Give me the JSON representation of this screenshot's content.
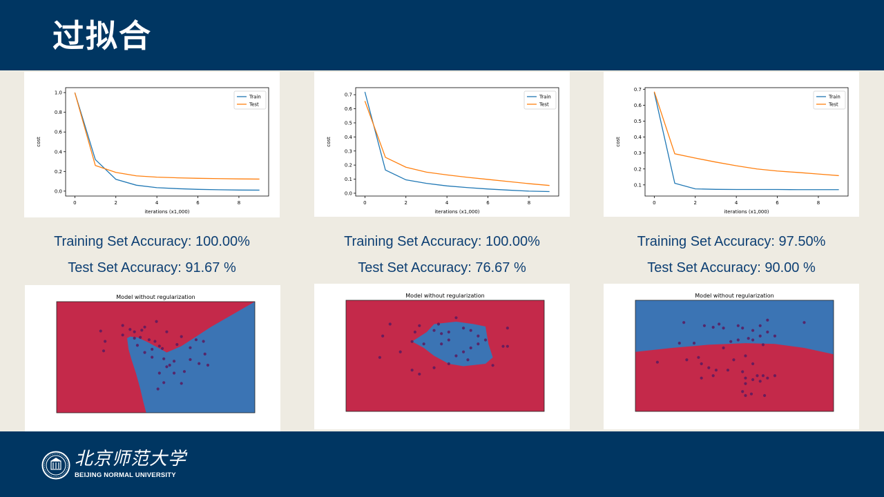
{
  "slide": {
    "title": "过拟合"
  },
  "footer": {
    "university_cn": "北京师范大学",
    "university_en": "BEIJING NORMAL UNIVERSITY"
  },
  "colors": {
    "header_bg": "#003662",
    "train": "#1f77b4",
    "test": "#ff7f0e",
    "red_region": "#c4294a",
    "blue_region": "#3b74b4",
    "text": "#0d3f73"
  },
  "chart_data": [
    {
      "type": "line",
      "xlabel": "iterations (x1,000)",
      "ylabel": "cost",
      "xlim": [
        -0.45,
        9.45
      ],
      "ylim": [
        -0.05,
        1.05
      ],
      "yticks": [
        0.0,
        0.2,
        0.4,
        0.6,
        0.8,
        1.0
      ],
      "ytick_labels": [
        "0.0",
        "0.2",
        "0.4",
        "0.6",
        "0.8",
        "1.0"
      ],
      "xticks": [
        0,
        2,
        4,
        6,
        8
      ],
      "xtick_labels": [
        "0",
        "2",
        "4",
        "6",
        "8"
      ],
      "x": [
        0,
        1,
        2,
        3,
        4,
        5,
        6,
        7,
        8,
        9
      ],
      "series": [
        {
          "name": "Train",
          "values": [
            1.0,
            0.32,
            0.12,
            0.06,
            0.035,
            0.025,
            0.018,
            0.014,
            0.011,
            0.01
          ]
        },
        {
          "name": "Test",
          "values": [
            1.0,
            0.26,
            0.19,
            0.155,
            0.142,
            0.135,
            0.13,
            0.127,
            0.124,
            0.122
          ]
        }
      ]
    },
    {
      "type": "line",
      "xlabel": "iterations (x1,000)",
      "ylabel": "cost",
      "xlim": [
        -0.45,
        9.45
      ],
      "ylim": [
        -0.02,
        0.75
      ],
      "yticks": [
        0.0,
        0.1,
        0.2,
        0.3,
        0.4,
        0.5,
        0.6,
        0.7
      ],
      "ytick_labels": [
        "0.0",
        "0.1",
        "0.2",
        "0.3",
        "0.4",
        "0.5",
        "0.6",
        "0.7"
      ],
      "xticks": [
        0,
        2,
        4,
        6,
        8
      ],
      "xtick_labels": [
        "0",
        "2",
        "4",
        "6",
        "8"
      ],
      "x": [
        0,
        1,
        2,
        3,
        4,
        5,
        6,
        7,
        8,
        9
      ],
      "series": [
        {
          "name": "Train",
          "values": [
            0.72,
            0.165,
            0.095,
            0.07,
            0.052,
            0.04,
            0.03,
            0.022,
            0.015,
            0.012
          ]
        },
        {
          "name": "Test",
          "values": [
            0.655,
            0.255,
            0.185,
            0.15,
            0.13,
            0.113,
            0.098,
            0.083,
            0.068,
            0.055
          ]
        }
      ]
    },
    {
      "type": "line",
      "xlabel": "iterations (x1,000)",
      "ylabel": "cost",
      "xlim": [
        -0.45,
        9.45
      ],
      "ylim": [
        0.03,
        0.71
      ],
      "yticks": [
        0.1,
        0.2,
        0.3,
        0.4,
        0.5,
        0.6,
        0.7
      ],
      "ytick_labels": [
        "0.1",
        "0.2",
        "0.3",
        "0.4",
        "0.5",
        "0.6",
        "0.7"
      ],
      "xticks": [
        0,
        2,
        4,
        6,
        8
      ],
      "xtick_labels": [
        "0",
        "2",
        "4",
        "6",
        "8"
      ],
      "x": [
        0,
        1,
        2,
        3,
        4,
        5,
        6,
        7,
        8,
        9
      ],
      "series": [
        {
          "name": "Train",
          "values": [
            0.68,
            0.11,
            0.075,
            0.072,
            0.071,
            0.071,
            0.071,
            0.07,
            0.07,
            0.07
          ]
        },
        {
          "name": "Test",
          "values": [
            0.685,
            0.295,
            0.268,
            0.243,
            0.22,
            0.2,
            0.187,
            0.178,
            0.168,
            0.158
          ]
        }
      ]
    },
    {
      "type": "scatter",
      "title": "Model without regularization",
      "xlim": [
        -0.75,
        0.6
      ],
      "ylim": [
        -0.8,
        0.6
      ],
      "red_region": [
        [
          -0.75,
          0.6
        ],
        [
          0.6,
          0.6
        ],
        [
          0.45,
          0.44
        ],
        [
          0.3,
          0.28
        ],
        [
          0.2,
          0.16
        ],
        [
          0.1,
          0.04
        ],
        [
          0.0,
          -0.04
        ],
        [
          -0.04,
          0.0
        ],
        [
          -0.13,
          0.09
        ],
        [
          -0.2,
          0.15
        ],
        [
          -0.25,
          0.16
        ],
        [
          -0.27,
          0.14
        ],
        [
          -0.26,
          0.0
        ],
        [
          -0.24,
          -0.13
        ],
        [
          -0.21,
          -0.3
        ],
        [
          -0.18,
          -0.5
        ],
        [
          -0.16,
          -0.66
        ],
        [
          -0.14,
          -0.8
        ],
        [
          -0.75,
          -0.8
        ]
      ],
      "points": [
        [
          -0.45,
          0.23
        ],
        [
          -0.42,
          0.1
        ],
        [
          -0.43,
          -0.02
        ],
        [
          -0.3,
          0.3
        ],
        [
          -0.3,
          0.18
        ],
        [
          -0.25,
          0.25
        ],
        [
          -0.22,
          0.22
        ],
        [
          -0.17,
          0.24
        ],
        [
          -0.15,
          0.28
        ],
        [
          -0.12,
          0.12
        ],
        [
          -0.08,
          0.1
        ],
        [
          -0.05,
          0.04
        ],
        [
          -0.03,
          0.01
        ],
        [
          -0.07,
          0.35
        ],
        [
          0.0,
          0.22
        ],
        [
          0.07,
          0.06
        ],
        [
          0.1,
          0.16
        ],
        [
          0.2,
          0.12
        ],
        [
          0.16,
          0.02
        ],
        [
          0.25,
          0.1
        ],
        [
          0.26,
          -0.06
        ],
        [
          0.28,
          -0.2
        ],
        [
          0.22,
          -0.18
        ],
        [
          -0.18,
          0.15
        ],
        [
          -0.22,
          0.14
        ],
        [
          -0.15,
          -0.04
        ],
        [
          -0.1,
          -0.1
        ],
        [
          -0.02,
          -0.12
        ],
        [
          0.02,
          -0.2
        ],
        [
          0.05,
          -0.3
        ],
        [
          0.12,
          -0.28
        ],
        [
          -0.05,
          -0.3
        ],
        [
          -0.02,
          -0.42
        ],
        [
          0.1,
          -0.43
        ],
        [
          -0.06,
          -0.5
        ],
        [
          0.05,
          -0.15
        ],
        [
          -0.2,
          0.05
        ],
        [
          0.16,
          -0.13
        ],
        [
          -0.1,
          0.0
        ],
        [
          0.0,
          -0.22
        ]
      ]
    },
    {
      "type": "scatter",
      "title": "Model without regularization",
      "xlim": [
        -0.75,
        0.6
      ],
      "ylim": [
        -0.8,
        0.6
      ],
      "red_region": [
        [
          -0.75,
          0.6
        ],
        [
          0.6,
          0.6
        ],
        [
          0.6,
          -0.8
        ],
        [
          -0.75,
          -0.8
        ]
      ],
      "blue_region": [
        [
          -0.3,
          0.08
        ],
        [
          -0.25,
          0.14
        ],
        [
          -0.2,
          0.2
        ],
        [
          -0.15,
          0.3
        ],
        [
          0.0,
          0.33
        ],
        [
          0.12,
          0.3
        ],
        [
          0.2,
          0.27
        ],
        [
          0.22,
          0.05
        ],
        [
          0.25,
          -0.12
        ],
        [
          0.2,
          -0.2
        ],
        [
          0.05,
          -0.23
        ],
        [
          -0.05,
          -0.2
        ],
        [
          -0.15,
          -0.1
        ],
        [
          -0.22,
          0.0
        ]
      ],
      "points": [
        [
          -0.45,
          0.3
        ],
        [
          -0.5,
          0.15
        ],
        [
          -0.38,
          -0.05
        ],
        [
          -0.52,
          -0.12
        ],
        [
          -0.28,
          0.2
        ],
        [
          -0.25,
          0.28
        ],
        [
          -0.22,
          0.05
        ],
        [
          -0.12,
          0.3
        ],
        [
          -0.15,
          0.22
        ],
        [
          -0.1,
          0.18
        ],
        [
          -0.05,
          0.2
        ],
        [
          0.0,
          0.38
        ],
        [
          0.05,
          0.25
        ],
        [
          0.1,
          0.22
        ],
        [
          0.15,
          0.15
        ],
        [
          0.15,
          0.05
        ],
        [
          0.2,
          0.1
        ],
        [
          0.1,
          0.0
        ],
        [
          0.05,
          -0.05
        ],
        [
          0.0,
          -0.1
        ],
        [
          -0.05,
          0.1
        ],
        [
          0.35,
          0.25
        ],
        [
          0.32,
          0.02
        ],
        [
          0.35,
          0.02
        ],
        [
          -0.05,
          -0.2
        ],
        [
          -0.15,
          -0.25
        ],
        [
          -0.25,
          -0.33
        ],
        [
          0.25,
          -0.22
        ],
        [
          -0.3,
          -0.28
        ],
        [
          -0.1,
          0.05
        ],
        [
          0.08,
          -0.15
        ],
        [
          -0.3,
          0.08
        ]
      ]
    },
    {
      "type": "scatter",
      "title": "Model without regularization",
      "xlim": [
        -0.75,
        0.6
      ],
      "ylim": [
        -0.8,
        0.6
      ],
      "red_region": [
        [
          -0.75,
          -0.05
        ],
        [
          -0.5,
          0.0
        ],
        [
          -0.25,
          0.04
        ],
        [
          0.0,
          0.06
        ],
        [
          0.2,
          0.05
        ],
        [
          0.4,
          0.0
        ],
        [
          0.6,
          -0.08
        ],
        [
          0.6,
          -0.8
        ],
        [
          -0.75,
          -0.8
        ]
      ],
      "points": [
        [
          -0.42,
          0.32
        ],
        [
          -0.28,
          0.28
        ],
        [
          -0.22,
          0.26
        ],
        [
          -0.18,
          0.3
        ],
        [
          -0.15,
          0.25
        ],
        [
          -0.05,
          0.28
        ],
        [
          -0.02,
          0.25
        ],
        [
          0.05,
          0.22
        ],
        [
          0.1,
          0.28
        ],
        [
          0.15,
          0.35
        ],
        [
          0.4,
          0.32
        ],
        [
          -0.45,
          0.06
        ],
        [
          -0.35,
          0.06
        ],
        [
          -0.1,
          0.08
        ],
        [
          -0.05,
          0.1
        ],
        [
          0.02,
          0.12
        ],
        [
          0.15,
          0.2
        ],
        [
          0.1,
          0.15
        ],
        [
          0.05,
          0.1
        ],
        [
          0.2,
          0.15
        ],
        [
          0.12,
          0.04
        ],
        [
          -0.6,
          -0.18
        ],
        [
          -0.4,
          -0.15
        ],
        [
          -0.32,
          -0.12
        ],
        [
          -0.3,
          -0.2
        ],
        [
          -0.25,
          -0.25
        ],
        [
          -0.2,
          -0.28
        ],
        [
          -0.22,
          -0.35
        ],
        [
          -0.12,
          -0.28
        ],
        [
          -0.02,
          -0.3
        ],
        [
          0.0,
          -0.38
        ],
        [
          0.05,
          -0.4
        ],
        [
          0.08,
          -0.35
        ],
        [
          0.12,
          -0.35
        ],
        [
          0.1,
          -0.42
        ],
        [
          0.15,
          -0.38
        ],
        [
          0.2,
          -0.35
        ],
        [
          0.05,
          -0.2
        ],
        [
          -0.08,
          -0.15
        ],
        [
          0.0,
          -0.45
        ],
        [
          -0.02,
          -0.55
        ],
        [
          0.0,
          -0.6
        ],
        [
          0.04,
          -0.58
        ],
        [
          0.13,
          -0.6
        ],
        [
          -0.3,
          -0.38
        ],
        [
          -0.15,
          0.0
        ],
        [
          0.0,
          -0.1
        ]
      ]
    }
  ],
  "columns": [
    {
      "train_accuracy": "Training  Set Accuracy: 100.00%",
      "test_accuracy": "Test Set Accuracy: 91.67 %"
    },
    {
      "train_accuracy": "Training  Set Accuracy: 100.00%",
      "test_accuracy": "Test Set Accuracy: 76.67 %"
    },
    {
      "train_accuracy": "Training  Set Accuracy: 97.50%",
      "test_accuracy": "Test Set Accuracy: 90.00 %"
    }
  ]
}
